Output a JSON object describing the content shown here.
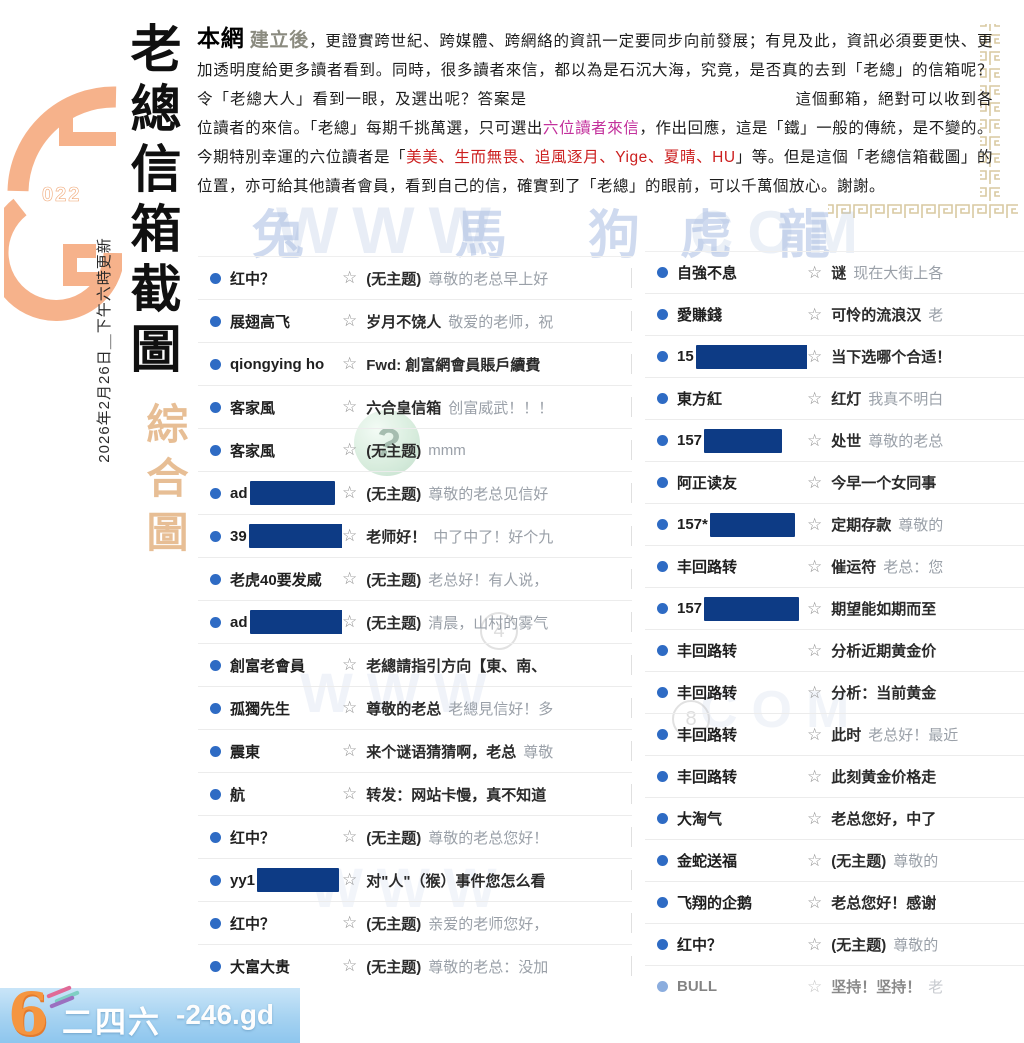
{
  "sidebar": {
    "emblem_number": "022",
    "title": "老總信箱截圖",
    "subtitle": "綜合圖",
    "date_note": "2026年2月26日＿下午六時更新"
  },
  "intro": {
    "lead": "本網",
    "lead2": "建立後",
    "p1": "，更證實跨世紀、跨媒體、跨網絡的資訊一定要同步向前發展；有見及此，資訊必須要更快、更加透明度給更多讀者看到。同時，很多讀者來信，都以為是石沉大海，究竟，是否真的去到「老總」的信箱呢？令「老總大人」看到一眼，及選出呢？答案是",
    "p2": "這個郵箱，絕對可以收到各位讀者的來信。「老總」每期千挑萬選，只可選出",
    "highlight": "六位讀者來信",
    "p3": "，作出回應，這是「鐵」一般的傳統，是不變的。今期特別幸運的六位讀者是「",
    "lucky_names": "美美、生而無畏、追風逐月、Yige、夏晴、HU",
    "p4": "」等。但是這個「老總信箱截圖」的位置，亦可給其他讀者會員，看到自己的信，確實到了「老總」的眼前，可以千萬個放心。謝謝。"
  },
  "watermarks": {
    "zodiac": [
      "兔",
      "馬",
      "狗",
      "虎",
      "龍"
    ],
    "ghost_left": "WWW",
    "ghost_right": "COM",
    "question_mark": "?",
    "page_markers": [
      "4",
      "8"
    ]
  },
  "list": {
    "star_glyph": "☆",
    "left": [
      {
        "sender": "红中？",
        "subject": "(无主题)",
        "preview": "尊敬的老总早上好"
      },
      {
        "sender": "展翅高飞",
        "subject": "岁月不饶人",
        "preview": "敬爱的老师，祝"
      },
      {
        "sender": "qiongying ho",
        "subject": "Fwd: 創富網會員賬戶續費",
        "preview": ""
      },
      {
        "sender": "客家風",
        "subject": "六合皇信箱",
        "preview": "创富威武！！！"
      },
      {
        "sender": "客家風",
        "subject": "(无主题)",
        "preview": "mmm"
      },
      {
        "sender": "ad",
        "redact": 85,
        "subject": "(无主题)",
        "preview": "尊敬的老总见信好"
      },
      {
        "sender": "39",
        "redact": 108,
        "subject": "老师好！",
        "preview": "中了中了！好个九"
      },
      {
        "sender": "老虎40要发威",
        "subject": "(无主题)",
        "preview": "老总好！有人说，"
      },
      {
        "sender": "ad",
        "redact": 112,
        "subject": "(无主题)",
        "preview": "清晨，山村的雾气"
      },
      {
        "sender": "創富老會員",
        "subject": "老總請指引方向【東、南、",
        "preview": ""
      },
      {
        "sender": "孤獨先生",
        "subject": "尊敬的老总",
        "preview": "老總見信好！多"
      },
      {
        "sender": "震東",
        "subject": "来个谜语猜猜啊，老总",
        "preview": "尊敬"
      },
      {
        "sender": "航",
        "subject": "转发：网站卡慢，真不知道",
        "preview": ""
      },
      {
        "sender": "红中？",
        "subject": "(无主题)",
        "preview": "尊敬的老总您好！"
      },
      {
        "sender": "yy1",
        "redact": 82,
        "subject": "对\"人\"（猴）事件您怎么看",
        "preview": ""
      },
      {
        "sender": "红中？",
        "subject": "(无主题)",
        "preview": "亲爱的老师您好，"
      },
      {
        "sender": "大富大贵",
        "subject": "(无主题)",
        "preview": "尊敬的老总：没加"
      }
    ],
    "right": [
      {
        "sender": "自強不息",
        "subject": "谜",
        "preview": "现在大街上各"
      },
      {
        "sender": "愛賺錢",
        "subject": "可怜的流浪汉",
        "preview": "老"
      },
      {
        "sender": "15",
        "redact": 115,
        "subject": "当下选哪个合适！",
        "preview": ""
      },
      {
        "sender": "東方紅",
        "subject": "红灯",
        "preview": "我真不明白"
      },
      {
        "sender": "157",
        "redact": 78,
        "subject": "处世",
        "preview": "尊敬的老总"
      },
      {
        "sender": "阿正读友",
        "subject": "今早一个女同事",
        "preview": ""
      },
      {
        "sender": "157*",
        "redact": 85,
        "subject": "定期存款",
        "preview": "尊敬的"
      },
      {
        "sender": "丰回路转",
        "subject": "催运符",
        "preview": "老总：您"
      },
      {
        "sender": "157",
        "redact": 95,
        "subject": "期望能如期而至",
        "preview": ""
      },
      {
        "sender": "丰回路转",
        "subject": "分析近期黄金价",
        "preview": ""
      },
      {
        "sender": "丰回路转",
        "subject": "分析：当前黄金",
        "preview": ""
      },
      {
        "sender": "丰回路转",
        "subject": "此时",
        "preview": "老总好！最近"
      },
      {
        "sender": "丰回路转",
        "subject": "此刻黄金价格走",
        "preview": ""
      },
      {
        "sender": "大淘气",
        "subject": "老总您好，中了",
        "preview": ""
      },
      {
        "sender": "金蛇送福",
        "subject": "(无主题)",
        "preview": "尊敬的"
      },
      {
        "sender": "飞翔的企鹅",
        "subject": "老总您好！感谢",
        "preview": ""
      },
      {
        "sender": "红中？",
        "subject": "(无主题)",
        "preview": "尊敬的"
      },
      {
        "sender": "BULL",
        "subject": "坚持！坚持！",
        "preview": "老",
        "faded": true
      }
    ]
  },
  "footer": {
    "logo": "6",
    "brand": "二四六",
    "domain": "-246.gd"
  },
  "colors": {
    "redaction": "#0d3b85",
    "unread_dot": "#2e6bc4",
    "highlight_magenta": "#c3319c",
    "names_red": "#cc2020",
    "emblem_orange": "#f6b28b",
    "banner_blue": "#a5d2f1"
  }
}
